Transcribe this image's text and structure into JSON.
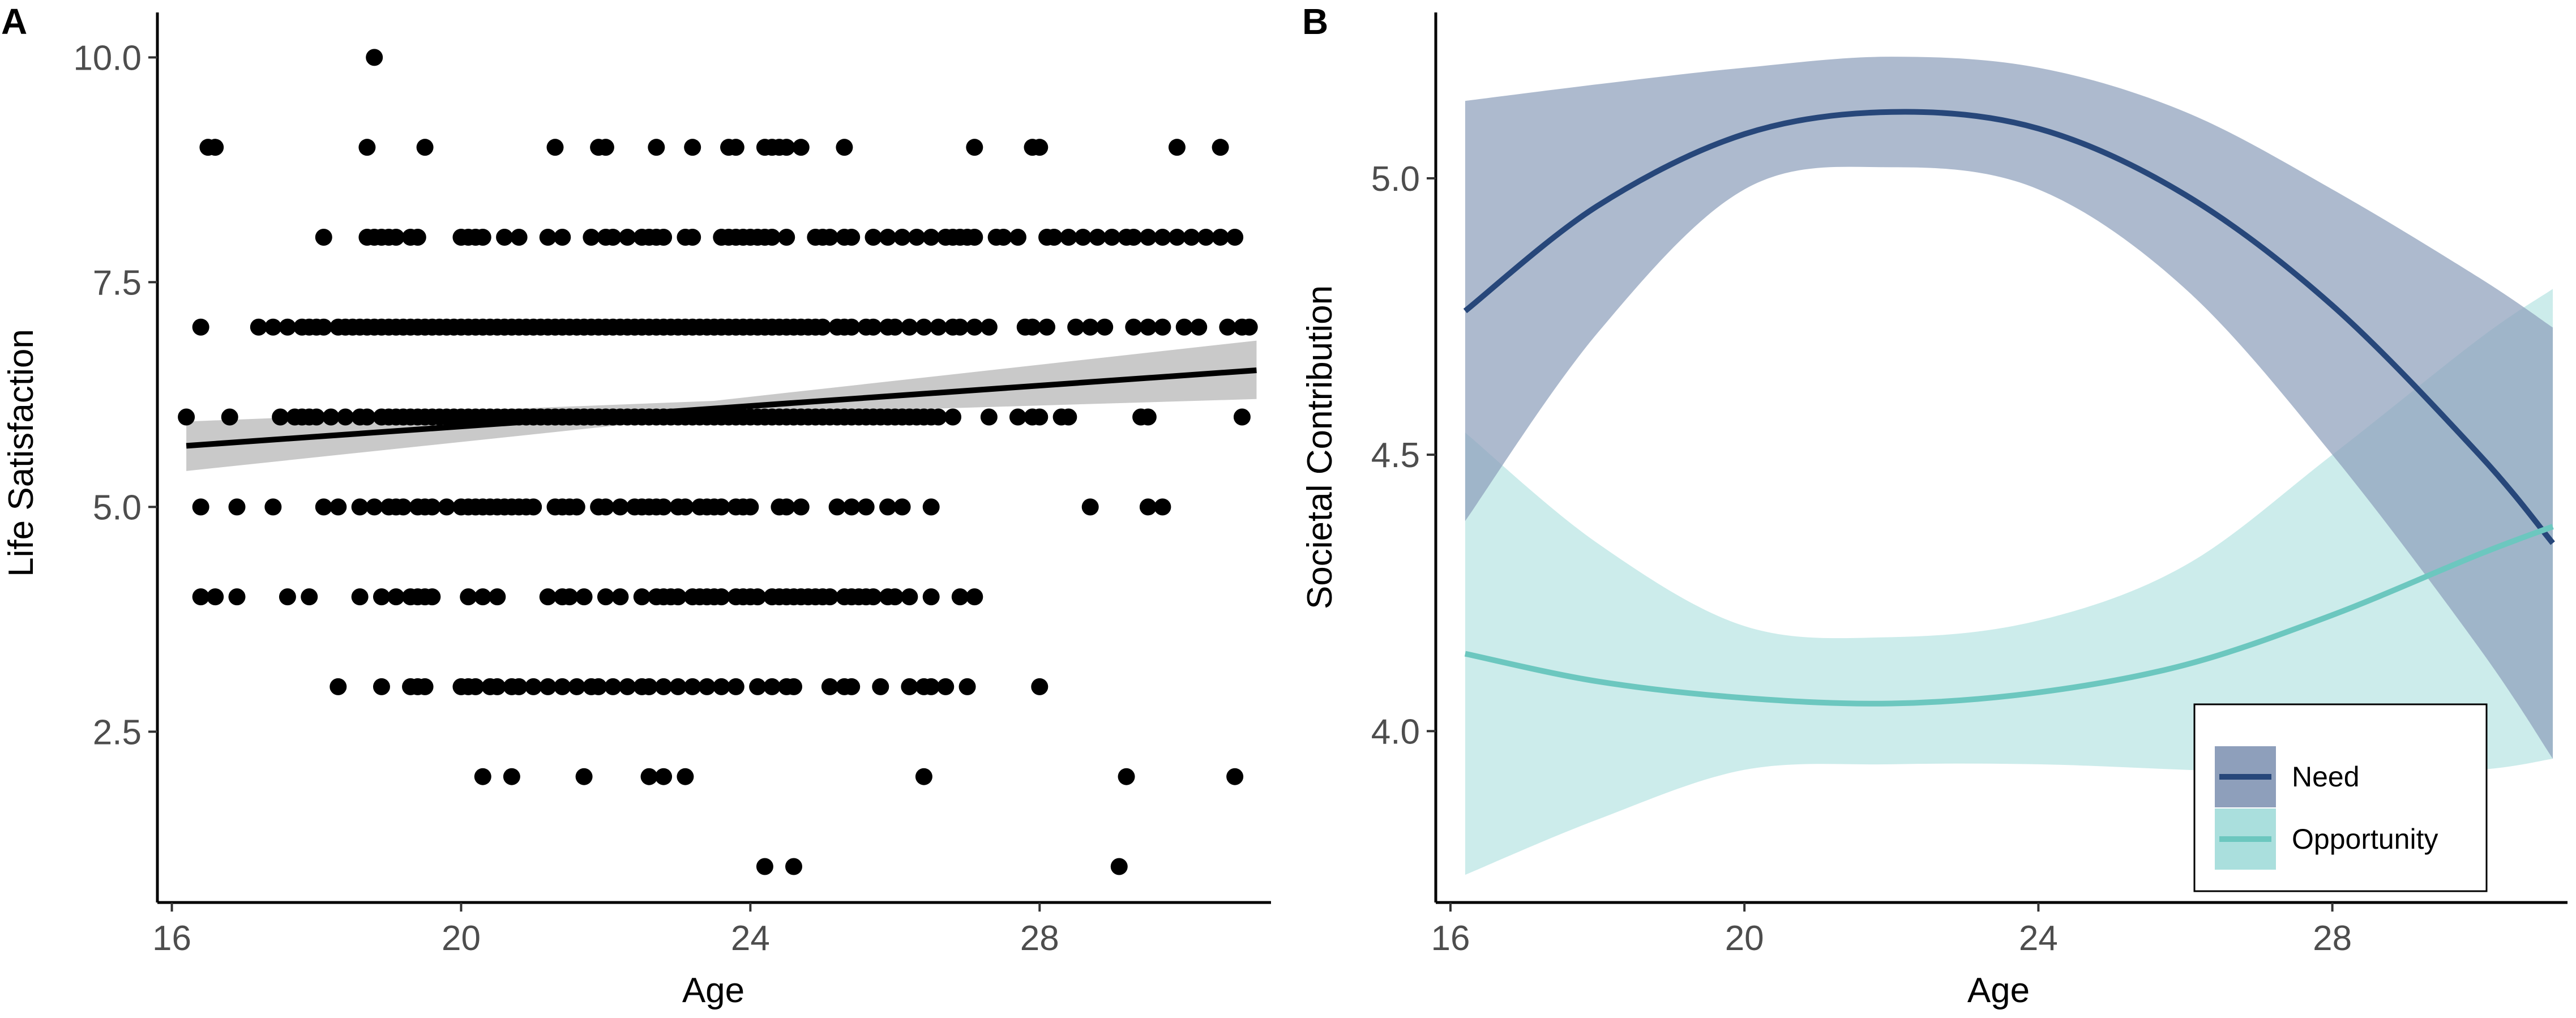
{
  "chart_data": [
    {
      "panel": "A",
      "type": "scatter",
      "title": "",
      "xlabel": "Age",
      "ylabel": "Life Satisfaction",
      "xlim": [
        15.8,
        31.2
      ],
      "ylim": [
        0.6,
        10.5
      ],
      "x_ticks": [
        16,
        20,
        24,
        28
      ],
      "y_ticks": [
        2.5,
        5.0,
        7.5,
        10.0
      ],
      "y_tick_labels": [
        "2.5",
        "5.0",
        "7.5",
        "10.0"
      ],
      "grid": false,
      "point_color": "#000000",
      "fit_line": {
        "x": [
          16.2,
          31.0
        ],
        "y": [
          5.68,
          6.52
        ],
        "color": "#000000"
      },
      "confidence_band": {
        "x": [
          16.2,
          23.5,
          31.0
        ],
        "lower": [
          5.4,
          6.02,
          6.2
        ],
        "upper": [
          5.95,
          6.18,
          6.85
        ],
        "color": "#bfbfbf"
      },
      "points": [
        {
          "y": 10,
          "x": [
            18.8
          ]
        },
        {
          "y": 9,
          "x": [
            16.5,
            16.6,
            18.7,
            19.5,
            21.3,
            21.9,
            22.0,
            22.7,
            23.2,
            23.7,
            23.8,
            24.2,
            24.3,
            24.4,
            24.5,
            24.7,
            25.3,
            27.1,
            27.9,
            28.0,
            29.9,
            30.5
          ]
        },
        {
          "y": 8,
          "x": [
            18.1,
            18.7,
            18.8,
            18.9,
            19.0,
            19.1,
            19.3,
            19.4,
            20.0,
            20.1,
            20.2,
            20.3,
            20.6,
            20.8,
            21.2,
            21.4,
            21.8,
            22.0,
            22.1,
            22.3,
            22.5,
            22.6,
            22.7,
            22.8,
            23.1,
            23.2,
            23.6,
            23.7,
            23.8,
            23.9,
            24.0,
            24.1,
            24.2,
            24.3,
            24.5,
            24.9,
            25.0,
            25.1,
            25.3,
            25.4,
            25.7,
            25.9,
            26.1,
            26.3,
            26.5,
            26.7,
            26.8,
            26.9,
            27.0,
            27.1,
            27.4,
            27.5,
            27.7,
            28.1,
            28.2,
            28.4,
            28.6,
            28.8,
            29.0,
            29.2,
            29.3,
            29.5,
            29.7,
            29.9,
            30.1,
            30.3,
            30.5,
            30.7
          ]
        },
        {
          "y": 7,
          "x": [
            16.4,
            17.2,
            17.4,
            17.6,
            17.8,
            17.9,
            18.0,
            18.1,
            18.3,
            18.4,
            18.5,
            18.6,
            18.7,
            18.8,
            18.9,
            19.0,
            19.1,
            19.2,
            19.3,
            19.4,
            19.5,
            19.6,
            19.7,
            19.8,
            19.9,
            20.0,
            20.1,
            20.2,
            20.3,
            20.4,
            20.5,
            20.6,
            20.7,
            20.8,
            20.9,
            21.0,
            21.1,
            21.2,
            21.3,
            21.4,
            21.5,
            21.6,
            21.7,
            21.8,
            21.9,
            22.0,
            22.1,
            22.2,
            22.3,
            22.4,
            22.5,
            22.6,
            22.7,
            22.8,
            22.9,
            23.0,
            23.1,
            23.2,
            23.3,
            23.4,
            23.5,
            23.6,
            23.7,
            23.8,
            23.9,
            24.0,
            24.1,
            24.2,
            24.3,
            24.4,
            24.5,
            24.6,
            24.7,
            24.8,
            24.9,
            25.0,
            25.2,
            25.3,
            25.4,
            25.6,
            25.7,
            25.9,
            26.0,
            26.2,
            26.4,
            26.6,
            26.8,
            26.9,
            27.1,
            27.3,
            27.8,
            27.9,
            28.1,
            28.5,
            28.7,
            28.9,
            29.3,
            29.5,
            29.7,
            30.0,
            30.2,
            30.6,
            30.8,
            30.9
          ]
        },
        {
          "y": 6,
          "x": [
            16.2,
            16.8,
            17.5,
            17.7,
            17.8,
            17.9,
            18.0,
            18.2,
            18.4,
            18.6,
            18.7,
            18.9,
            19.0,
            19.1,
            19.2,
            19.3,
            19.4,
            19.5,
            19.6,
            19.7,
            19.8,
            19.9,
            20.0,
            20.1,
            20.2,
            20.3,
            20.4,
            20.5,
            20.6,
            20.7,
            20.8,
            20.9,
            21.0,
            21.1,
            21.2,
            21.3,
            21.4,
            21.5,
            21.6,
            21.7,
            21.8,
            21.9,
            22.0,
            22.1,
            22.2,
            22.3,
            22.4,
            22.5,
            22.6,
            22.7,
            22.8,
            22.9,
            23.0,
            23.1,
            23.2,
            23.3,
            23.4,
            23.5,
            23.6,
            23.7,
            23.8,
            23.9,
            24.0,
            24.1,
            24.2,
            24.3,
            24.4,
            24.5,
            24.6,
            24.7,
            24.8,
            24.9,
            25.0,
            25.1,
            25.2,
            25.3,
            25.4,
            25.5,
            25.6,
            25.7,
            25.8,
            25.9,
            26.0,
            26.1,
            26.2,
            26.3,
            26.4,
            26.5,
            26.6,
            26.8,
            27.3,
            27.7,
            27.9,
            28.0,
            28.3,
            28.4,
            29.4,
            29.5,
            30.8
          ]
        },
        {
          "y": 5,
          "x": [
            16.4,
            16.9,
            17.4,
            18.1,
            18.3,
            18.6,
            18.8,
            19.0,
            19.1,
            19.2,
            19.4,
            19.5,
            19.6,
            19.8,
            20.0,
            20.1,
            20.2,
            20.3,
            20.4,
            20.5,
            20.6,
            20.7,
            20.8,
            20.9,
            21.0,
            21.3,
            21.4,
            21.5,
            21.6,
            21.9,
            22.0,
            22.2,
            22.4,
            22.5,
            22.6,
            22.7,
            22.8,
            23.0,
            23.1,
            23.3,
            23.4,
            23.5,
            23.6,
            23.8,
            23.9,
            24.0,
            24.4,
            24.5,
            24.7,
            25.2,
            25.4,
            25.6,
            25.9,
            26.1,
            26.5,
            28.7,
            29.5,
            29.7
          ]
        },
        {
          "y": 4,
          "x": [
            16.4,
            16.6,
            16.9,
            17.6,
            17.9,
            18.6,
            18.9,
            19.1,
            19.3,
            19.4,
            19.5,
            19.6,
            20.1,
            20.3,
            20.5,
            21.2,
            21.4,
            21.5,
            21.7,
            22.0,
            22.2,
            22.5,
            22.7,
            22.8,
            22.9,
            23.0,
            23.2,
            23.3,
            23.4,
            23.5,
            23.6,
            23.8,
            23.9,
            24.0,
            24.1,
            24.3,
            24.4,
            24.5,
            24.6,
            24.7,
            24.8,
            24.9,
            25.0,
            25.1,
            25.3,
            25.4,
            25.5,
            25.6,
            25.7,
            25.9,
            26.0,
            26.2,
            26.5,
            26.9,
            27.1
          ]
        },
        {
          "y": 3,
          "x": [
            18.3,
            18.9,
            19.3,
            19.4,
            19.5,
            20.0,
            20.1,
            20.2,
            20.4,
            20.5,
            20.7,
            20.8,
            21.0,
            21.2,
            21.4,
            21.6,
            21.8,
            21.9,
            22.1,
            22.3,
            22.5,
            22.6,
            22.8,
            23.0,
            23.2,
            23.4,
            23.6,
            23.8,
            24.1,
            24.3,
            24.5,
            24.6,
            25.1,
            25.3,
            25.4,
            25.8,
            26.2,
            26.4,
            26.5,
            26.7,
            27.0,
            28.0
          ]
        },
        {
          "y": 2,
          "x": [
            20.3,
            20.7,
            21.7,
            22.6,
            22.8,
            23.1,
            26.4,
            29.2,
            30.7
          ]
        },
        {
          "y": 1,
          "x": [
            24.2,
            24.6,
            29.1
          ]
        }
      ]
    },
    {
      "panel": "B",
      "type": "line",
      "title": "",
      "xlabel": "Age",
      "ylabel": "Societal Contribution",
      "xlim": [
        15.8,
        31.2
      ],
      "ylim": [
        3.69,
        5.3
      ],
      "x_ticks": [
        16,
        20,
        24,
        28
      ],
      "y_ticks": [
        4.0,
        4.5,
        5.0
      ],
      "y_tick_labels": [
        "4.0",
        "4.5",
        "5.0"
      ],
      "grid": false,
      "legend_position": "bottom-right",
      "series": [
        {
          "name": "Need",
          "color": "#27477a",
          "band_color": "#8e9fbb",
          "x": [
            16.2,
            18,
            20,
            22,
            24,
            26,
            28,
            30,
            31
          ],
          "y": [
            4.76,
            4.95,
            5.08,
            5.12,
            5.09,
            4.97,
            4.77,
            4.5,
            4.34
          ],
          "lower": [
            4.38,
            4.72,
            4.98,
            5.02,
            4.98,
            4.8,
            4.5,
            4.15,
            3.95
          ],
          "upper": [
            5.14,
            5.17,
            5.2,
            5.22,
            5.2,
            5.12,
            4.98,
            4.82,
            4.73
          ]
        },
        {
          "name": "Opportunity",
          "color": "#6cc7bf",
          "band_color": "#aadfdd",
          "x": [
            16.2,
            18,
            20,
            22,
            24,
            26,
            28,
            30,
            31
          ],
          "y": [
            4.14,
            4.09,
            4.06,
            4.05,
            4.07,
            4.12,
            4.21,
            4.32,
            4.37
          ],
          "lower": [
            3.74,
            3.84,
            3.93,
            3.94,
            3.94,
            3.93,
            3.92,
            3.93,
            3.95
          ],
          "upper": [
            4.54,
            4.34,
            4.19,
            4.17,
            4.2,
            4.3,
            4.5,
            4.71,
            4.8
          ]
        }
      ]
    }
  ]
}
